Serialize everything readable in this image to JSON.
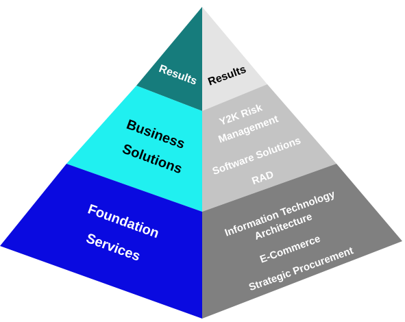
{
  "left_face": {
    "top": {
      "label": "Results",
      "color": "#167c7c",
      "text_color": "#ffffff"
    },
    "middle": {
      "line1": "Business",
      "line2": "Solutions",
      "color": "#20f0f0",
      "text_color": "#000000"
    },
    "bottom": {
      "line1": "Foundation",
      "line2": "Services",
      "color": "#0a0ae0",
      "text_color": "#ffffff"
    }
  },
  "right_face": {
    "top": {
      "label": "Results",
      "color": "#e4e4e4",
      "text_color": "#000000"
    },
    "middle": {
      "color": "#c4c4c4",
      "text_color": "#ffffff",
      "items": [
        "Y2K Risk",
        "Management",
        "Software Solutions",
        "RAD"
      ]
    },
    "bottom": {
      "color": "#808080",
      "text_color": "#ffffff",
      "items": [
        "Information Technology",
        "Architecture",
        "E-Commerce",
        "Strategic Procurement"
      ]
    }
  }
}
